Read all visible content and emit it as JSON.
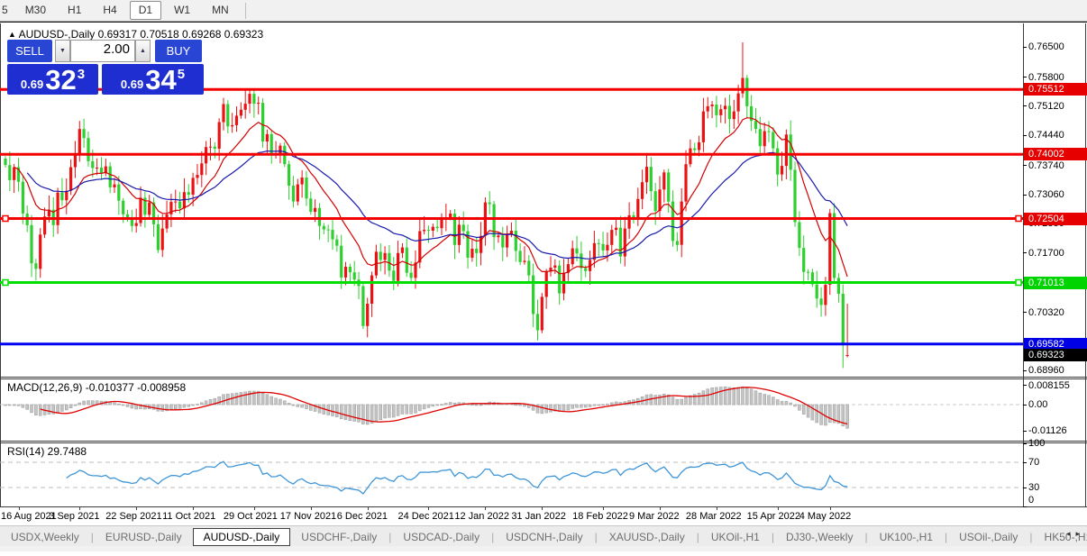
{
  "toolbar": {
    "timeframes": [
      {
        "label": "5",
        "active": false
      },
      {
        "label": "M30",
        "active": false
      },
      {
        "label": "H1",
        "active": false
      },
      {
        "label": "H4",
        "active": false
      },
      {
        "label": "D1",
        "active": true
      },
      {
        "label": "W1",
        "active": false
      },
      {
        "label": "MN",
        "active": false
      }
    ]
  },
  "chart": {
    "collapse_arrow": "▲",
    "title": "AUDUSD-,Daily",
    "ohlc": "0.69317 0.70518 0.69268 0.69323"
  },
  "trade_panel": {
    "sell_label": "SELL",
    "buy_label": "BUY",
    "volume": "2.00",
    "down_arrow": "▼",
    "up_arrow": "▲",
    "sell_small": "0.69",
    "sell_big": "32",
    "sell_sup": "3",
    "buy_small": "0.69",
    "buy_big": "34",
    "buy_sup": "5"
  },
  "price_axis": {
    "ticks": [
      {
        "label": "0.76500",
        "value": 0.765
      },
      {
        "label": "0.75800",
        "value": 0.758
      },
      {
        "label": "0.75120",
        "value": 0.7512
      },
      {
        "label": "0.74440",
        "value": 0.7444
      },
      {
        "label": "0.73740",
        "value": 0.7374
      },
      {
        "label": "0.73060",
        "value": 0.7306
      },
      {
        "label": "0.72380",
        "value": 0.7238
      },
      {
        "label": "0.71700",
        "value": 0.717
      },
      {
        "label": "0.70320",
        "value": 0.7032
      },
      {
        "label": "0.68960",
        "value": 0.6896
      }
    ],
    "level_labels": [
      {
        "label": "0.75512",
        "value": 0.75512,
        "bg": "#e60000",
        "fg": "#ffffff"
      },
      {
        "label": "0.74002",
        "value": 0.74002,
        "bg": "#e60000",
        "fg": "#ffffff"
      },
      {
        "label": "0.72504",
        "value": 0.72504,
        "bg": "#e60000",
        "fg": "#ffffff"
      },
      {
        "label": "0.71013",
        "value": 0.71013,
        "bg": "#00d400",
        "fg": "#ffffff"
      },
      {
        "label": "0.69582",
        "value": 0.69582,
        "bg": "#0000e6",
        "fg": "#ffffff"
      },
      {
        "label": "0.69323",
        "value": 0.69323,
        "bg": "#000000",
        "fg": "#ffffff"
      }
    ]
  },
  "levels": [
    {
      "value": 0.75512,
      "color": "#f40000",
      "width": 3,
      "handles": false
    },
    {
      "value": 0.74002,
      "color": "#f40000",
      "width": 3,
      "handles": false
    },
    {
      "value": 0.72504,
      "color": "#f40000",
      "width": 3,
      "handles": true
    },
    {
      "value": 0.71013,
      "color": "#00dd00",
      "width": 3,
      "handles": true
    },
    {
      "value": 0.69582,
      "color": "#0000f0",
      "width": 3,
      "handles": false
    }
  ],
  "chart_data": {
    "type": "candlestick",
    "symbol": "AUDUSD-",
    "timeframe": "Daily",
    "up_color": "#ea1212",
    "down_color": "#2ecf2e",
    "open_seed": 0.739,
    "closes": [
      0.7375,
      0.734,
      0.737,
      0.7336,
      0.7262,
      0.7235,
      0.7146,
      0.7133,
      0.7213,
      0.7255,
      0.7271,
      0.7235,
      0.7311,
      0.7293,
      0.7315,
      0.737,
      0.7399,
      0.7459,
      0.7438,
      0.7384,
      0.7368,
      0.7369,
      0.7356,
      0.7372,
      0.7323,
      0.733,
      0.7292,
      0.726,
      0.7253,
      0.7233,
      0.724,
      0.7299,
      0.7259,
      0.7288,
      0.7237,
      0.7177,
      0.7227,
      0.726,
      0.7289,
      0.729,
      0.7274,
      0.7312,
      0.7306,
      0.7345,
      0.7352,
      0.7379,
      0.7417,
      0.7418,
      0.7413,
      0.7475,
      0.7517,
      0.7465,
      0.7468,
      0.749,
      0.7504,
      0.7518,
      0.7541,
      0.7518,
      0.752,
      0.743,
      0.7447,
      0.74,
      0.7402,
      0.742,
      0.7377,
      0.7327,
      0.729,
      0.733,
      0.7346,
      0.7297,
      0.7266,
      0.7275,
      0.7233,
      0.7225,
      0.7224,
      0.7202,
      0.7187,
      0.7113,
      0.7138,
      0.7125,
      0.7108,
      0.7093,
      0.7,
      0.7052,
      0.7118,
      0.7173,
      0.7154,
      0.717,
      0.7129,
      0.7105,
      0.717,
      0.7183,
      0.7124,
      0.7112,
      0.7148,
      0.7221,
      0.7224,
      0.7222,
      0.7231,
      0.7228,
      0.7249,
      0.7253,
      0.7262,
      0.7189,
      0.7236,
      0.7221,
      0.7159,
      0.718,
      0.717,
      0.721,
      0.7288,
      0.7284,
      0.7207,
      0.7211,
      0.7183,
      0.7215,
      0.7222,
      0.7175,
      0.7149,
      0.7152,
      0.7118,
      0.7028,
      0.699,
      0.7068,
      0.7127,
      0.7136,
      0.7141,
      0.7076,
      0.7124,
      0.7144,
      0.7181,
      0.7169,
      0.7135,
      0.7128,
      0.7154,
      0.7193,
      0.7191,
      0.7176,
      0.7189,
      0.7224,
      0.7229,
      0.7162,
      0.7227,
      0.7258,
      0.7253,
      0.7296,
      0.7335,
      0.7371,
      0.7314,
      0.7268,
      0.7318,
      0.7358,
      0.729,
      0.7198,
      0.7189,
      0.729,
      0.7377,
      0.7414,
      0.741,
      0.7428,
      0.75,
      0.7512,
      0.7516,
      0.7491,
      0.7505,
      0.7513,
      0.7482,
      0.75,
      0.7542,
      0.7578,
      0.7512,
      0.7478,
      0.7459,
      0.7419,
      0.7454,
      0.7452,
      0.7414,
      0.7353,
      0.7373,
      0.7446,
      0.7364,
      0.7242,
      0.7182,
      0.7126,
      0.7125,
      0.7097,
      0.7064,
      0.7049,
      0.7096,
      0.7263,
      0.7112,
      0.7075,
      0.6955,
      0.69323
    ],
    "overrides": {
      "7": {
        "l": 0.7106
      },
      "17": {
        "h": 0.7478
      },
      "35": {
        "l": 0.717
      },
      "56": {
        "h": 0.7552
      },
      "82": {
        "l": 0.6993
      },
      "111": {
        "h": 0.7314
      },
      "122": {
        "l": 0.6966
      },
      "169": {
        "h": 0.7661
      },
      "179": {
        "h": 0.7458
      },
      "192": {
        "l": 0.6902
      },
      "193": {
        "o": 0.69317,
        "h": 0.70518,
        "l": 0.69268,
        "c": 0.69323
      }
    }
  },
  "indicators": {
    "ma_fast": {
      "period": 13,
      "color": "#d40000"
    },
    "ma_slow": {
      "period": 34,
      "color": "#1919ad"
    },
    "macd": {
      "label": "MACD(12,26,9) -0.010377 -0.008958",
      "hist_color": "#c4c4c4",
      "hist_stroke": "#9a9a9a",
      "signal_color": "#e00000",
      "ticks": [
        {
          "label": "0.008155",
          "value": 0.008155
        },
        {
          "label": "0.00",
          "value": 0
        },
        {
          "label": "-0.01126",
          "value": -0.01126
        }
      ]
    },
    "rsi": {
      "label": "RSI(14) 29.7488",
      "line_color": "#3f96d8",
      "dashed_levels": [
        70,
        30
      ],
      "ticks": [
        {
          "label": "100",
          "value": 100
        },
        {
          "label": "70",
          "value": 70
        },
        {
          "label": "30",
          "value": 30
        },
        {
          "label": "0",
          "value": 0
        }
      ]
    }
  },
  "x_axis": {
    "labels": [
      {
        "text": "16 Aug 2021",
        "idx": 3
      },
      {
        "text": "3 Sep 2021",
        "idx": 17
      },
      {
        "text": "22 Sep 2021",
        "idx": 30
      },
      {
        "text": "11 Oct 2021",
        "idx": 43
      },
      {
        "text": "29 Oct 2021",
        "idx": 57
      },
      {
        "text": "17 Nov 2021",
        "idx": 70
      },
      {
        "text": "6 Dec 2021",
        "idx": 83
      },
      {
        "text": "24 Dec 2021",
        "idx": 97
      },
      {
        "text": "12 Jan 2022",
        "idx": 110
      },
      {
        "text": "31 Jan 2022",
        "idx": 123
      },
      {
        "text": "18 Feb 2022",
        "idx": 137
      },
      {
        "text": "9 Mar 2022",
        "idx": 150
      },
      {
        "text": "28 Mar 2022",
        "idx": 163
      },
      {
        "text": "15 Apr 2022",
        "idx": 177
      },
      {
        "text": "4 May 2022",
        "idx": 189
      }
    ]
  },
  "tabs": {
    "separator": "|",
    "left_arrow": "◂",
    "right_arrow": "▸",
    "items": [
      {
        "label": "USDX,Weekly",
        "active": false
      },
      {
        "label": "EURUSD-,Daily",
        "active": false
      },
      {
        "label": "AUDUSD-,Daily",
        "active": true
      },
      {
        "label": "USDCHF-,Daily",
        "active": false
      },
      {
        "label": "USDCAD-,Daily",
        "active": false
      },
      {
        "label": "USDCNH-,Daily",
        "active": false
      },
      {
        "label": "XAUUSD-,Daily",
        "active": false
      },
      {
        "label": "UKOil-,H1",
        "active": false
      },
      {
        "label": "DJ30-,Weekly",
        "active": false
      },
      {
        "label": "UK100-,H1",
        "active": false
      },
      {
        "label": "USOil-,Daily",
        "active": false
      },
      {
        "label": "HK50-,H1",
        "active": false
      }
    ]
  }
}
